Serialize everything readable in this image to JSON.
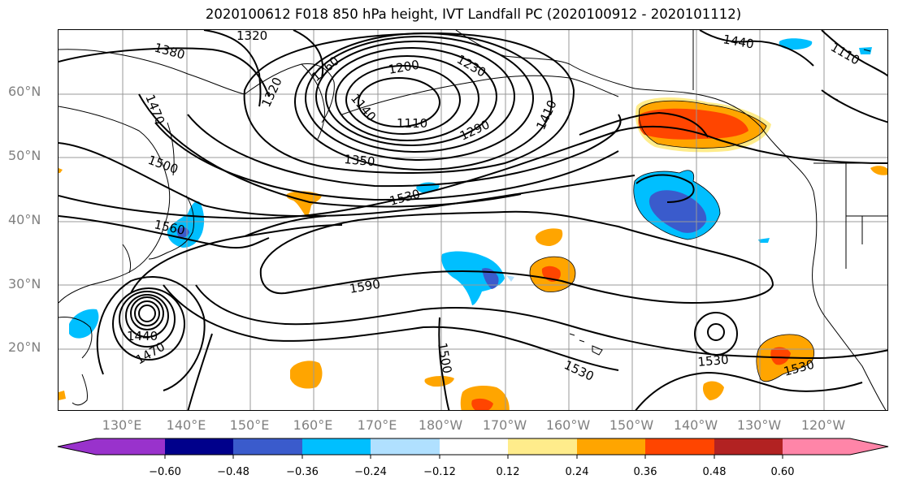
{
  "title": "2020100612 F018 850 hPa height, IVT Landfall PC (2020100912 - 2020101112)",
  "lat_labels": [
    "60°N",
    "50°N",
    "40°N",
    "30°N",
    "20°N"
  ],
  "lon_labels": [
    "130°E",
    "140°E",
    "150°E",
    "160°E",
    "170°E",
    "180°W",
    "170°W",
    "160°W",
    "150°W",
    "140°W",
    "130°W",
    "120°W"
  ],
  "contour_labels": [
    "1320",
    "1380",
    "1260",
    "1200",
    "1230",
    "1470",
    "1320",
    "1140",
    "1110",
    "1290",
    "1410",
    "1350",
    "1500",
    "1530",
    "1560",
    "1590",
    "1440",
    "1470",
    "1500",
    "1530",
    "1530",
    "1530",
    "1440",
    "1110"
  ],
  "colorbar": {
    "colors": [
      "#9932CC",
      "#00008B",
      "#3A5BCC",
      "#00BFFF",
      "#B0E0FF",
      "#FFFFFF",
      "#FFEC8B",
      "#FFA500",
      "#FF4500",
      "#B22222",
      "#FF85A8"
    ],
    "tick_labels": [
      "−0.60",
      "−0.48",
      "−0.36",
      "−0.24",
      "−0.12",
      "0.12",
      "0.24",
      "0.36",
      "0.48",
      "0.60"
    ]
  },
  "fill_colors": {
    "light_blue": "#B0E0FF",
    "blue": "#00BFFF",
    "med_blue": "#3A5BCC",
    "yellow": "#FFEC8B",
    "orange": "#FFA500",
    "red_orange": "#FF4500"
  }
}
